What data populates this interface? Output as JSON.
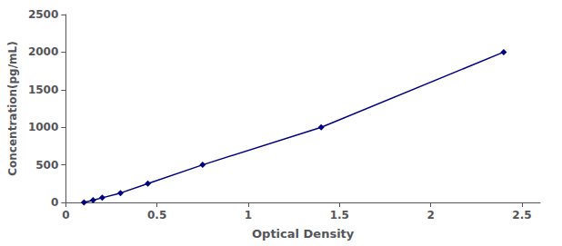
{
  "chart_data": {
    "type": "line",
    "x": [
      0.1,
      0.15,
      0.2,
      0.3,
      0.45,
      0.75,
      1.4,
      2.4
    ],
    "values": [
      0,
      31,
      62,
      125,
      250,
      500,
      1000,
      2000
    ],
    "color": "#000080",
    "marker": "diamond",
    "xlabel": "Optical Density",
    "ylabel": "Concentration(pg/mL)",
    "xlim": [
      0.0,
      2.6
    ],
    "ylim": [
      0,
      2500
    ],
    "xticks": [
      0,
      0.5,
      1,
      1.5,
      2,
      2.5
    ],
    "yticks": [
      0,
      500,
      1000,
      1500,
      2000,
      2500
    ],
    "grid": false
  }
}
